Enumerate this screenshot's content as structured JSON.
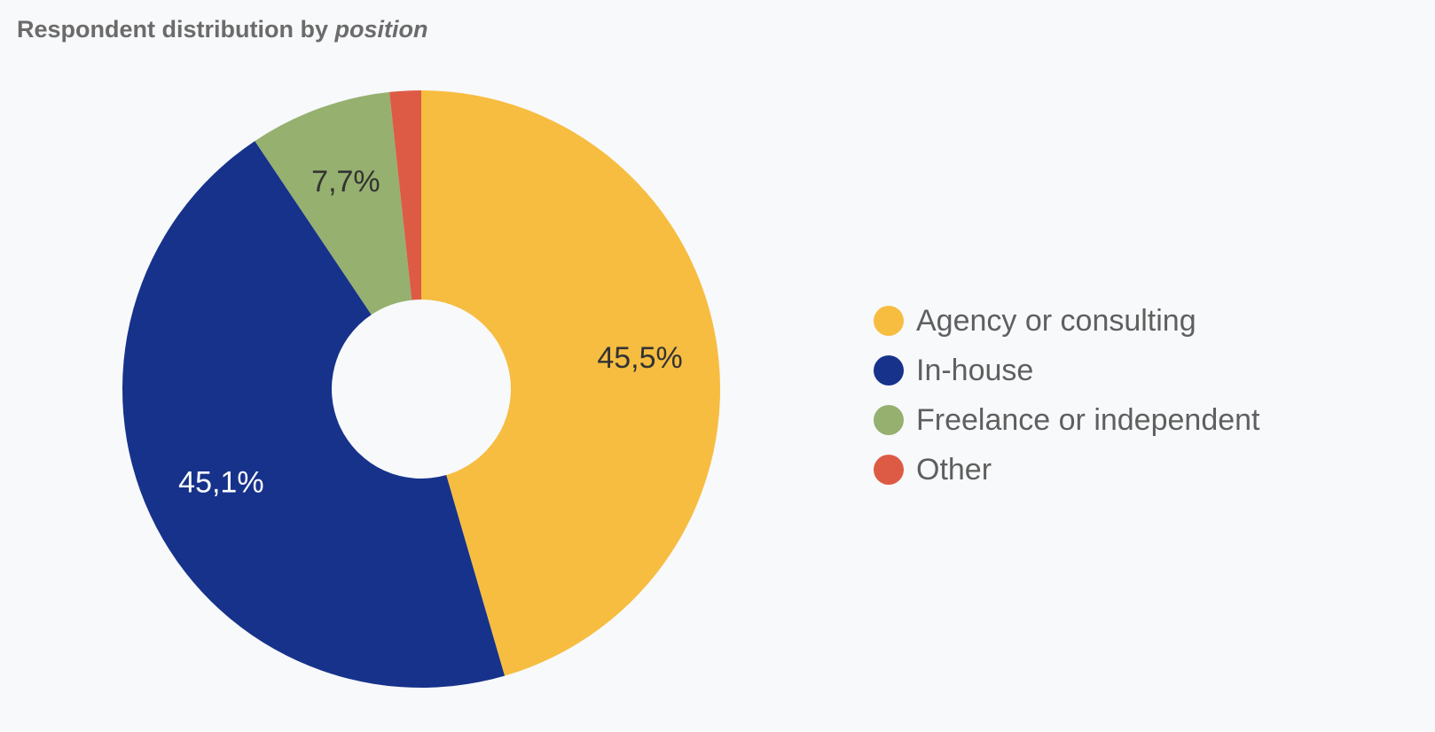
{
  "title": {
    "prefix": "Respondent distribution by ",
    "emphasis": "position"
  },
  "chart_data": {
    "type": "pie",
    "style": "donut",
    "title": "Respondent distribution by position",
    "categories": [
      "Agency or consulting",
      "In-house",
      "Freelance or independent",
      "Other"
    ],
    "values": [
      45.5,
      45.1,
      7.7,
      1.7
    ],
    "data_labels": [
      "45,5%",
      "45,1%",
      "7,7%",
      ""
    ],
    "colors": [
      "#f6bd41",
      "#17328b",
      "#96b06f",
      "#dd5b45"
    ],
    "label_colors": [
      "#333333",
      "#ffffff",
      "#333333",
      "#333333"
    ],
    "legend_position": "right",
    "start": "top",
    "direction": "clockwise"
  }
}
